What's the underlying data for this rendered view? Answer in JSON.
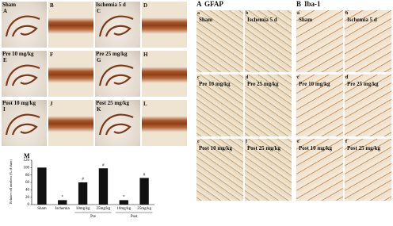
{
  "left": {
    "panels": [
      {
        "letter": "A",
        "label": "Sham"
      },
      {
        "letter": "B"
      },
      {
        "letter": "C",
        "label": "Ischemia 5 d"
      },
      {
        "letter": "D"
      },
      {
        "letter": "E",
        "label": "Pre 10 mg/kg"
      },
      {
        "letter": "F"
      },
      {
        "letter": "G",
        "label": "Pre 25 mg/kg"
      },
      {
        "letter": "H"
      },
      {
        "letter": "I",
        "label": "Post 10 mg/kg"
      },
      {
        "letter": "J"
      },
      {
        "letter": "K",
        "label": "Post 25 mg/kg"
      },
      {
        "letter": "L"
      }
    ]
  },
  "right": [
    {
      "letter": "A",
      "title": "GFAP",
      "panels": [
        {
          "letter": "a",
          "label": "Sham"
        },
        {
          "letter": "b",
          "label": "Ischemia 5 d"
        },
        {
          "letter": "c",
          "label": "Pre 10 mg/kg"
        },
        {
          "letter": "d",
          "label": "Pre 25 mg/kg"
        },
        {
          "letter": "e",
          "label": "Post 10 mg/kg"
        },
        {
          "letter": "f",
          "label": "Post 25 mg/kg"
        }
      ]
    },
    {
      "letter": "B",
      "title": "Iba-1",
      "panels": [
        {
          "letter": "a",
          "label": "Sham"
        },
        {
          "letter": "b",
          "label": "Ischemia 5 d"
        },
        {
          "letter": "c",
          "label": "Pre 10 mg/kg"
        },
        {
          "letter": "d",
          "label": "Pre 25 mg/kg"
        },
        {
          "letter": "e",
          "label": "Post 10 mg/kg"
        },
        {
          "letter": "f",
          "label": "Post 25 mg/kg"
        }
      ]
    }
  ],
  "chart_data": {
    "type": "bar",
    "panel_letter": "M",
    "y_label": "Relative cell numbers (% of sham)",
    "categories": [
      "Sham",
      "Ischemia",
      "10mg/kg",
      "25mg/kg",
      "10mg/kg",
      "25mg/kg"
    ],
    "group_labels": [
      "Pre",
      "Post"
    ],
    "values": [
      100,
      12,
      60,
      98,
      12,
      72
    ],
    "markers": [
      null,
      "*",
      "#",
      "#",
      "*",
      "#"
    ],
    "color": "#111111",
    "ylim": [
      0,
      120
    ],
    "yticks": [
      0,
      20,
      40,
      60,
      80,
      100,
      120
    ]
  }
}
